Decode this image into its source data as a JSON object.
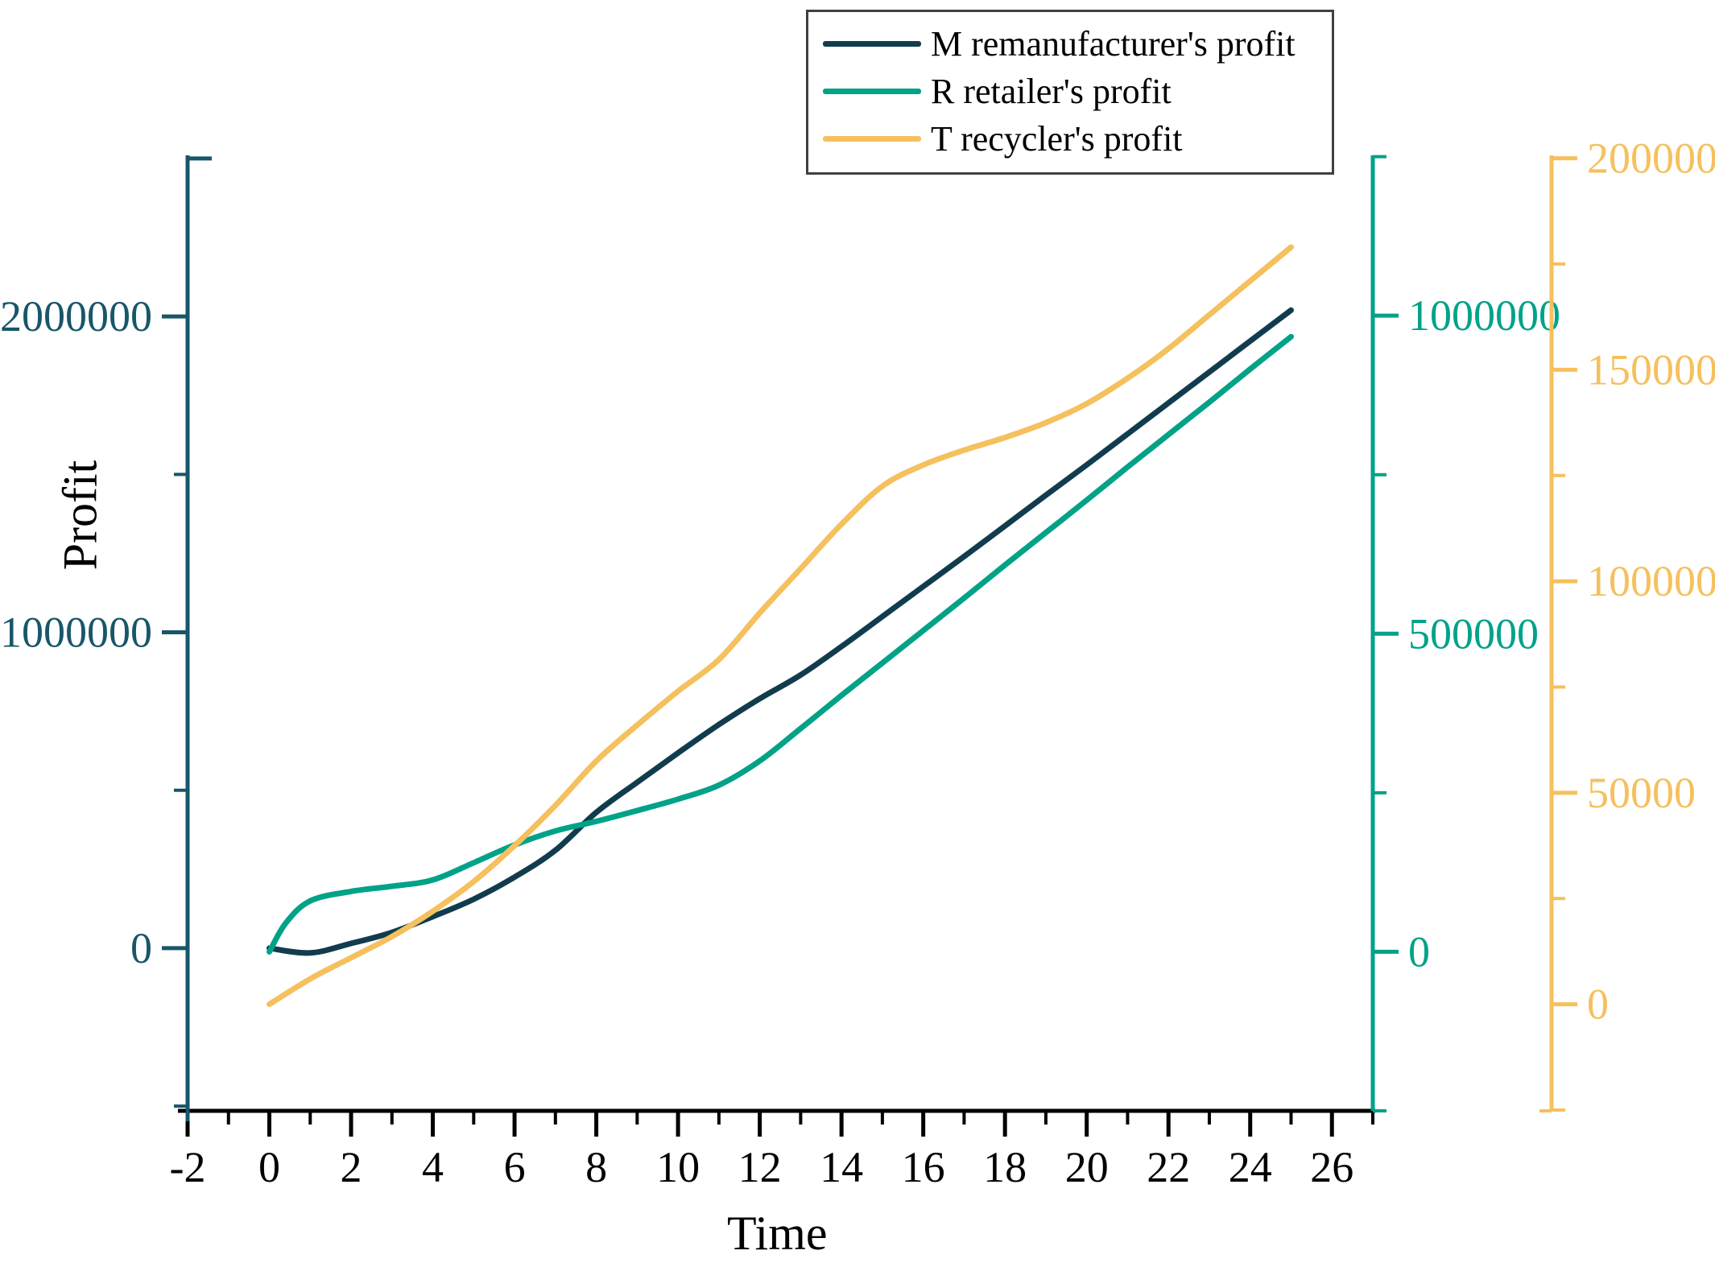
{
  "axis_titles": {
    "x": "Time",
    "y": "Profit"
  },
  "legend": {
    "entries": [
      {
        "label": "M remanufacturer's profit",
        "color": "#113c4d"
      },
      {
        "label": "R retailer's profit",
        "color": "#00a288"
      },
      {
        "label": "T recycler's profit",
        "color": "#f5c05e"
      }
    ]
  },
  "chart_data": {
    "type": "line",
    "title": "",
    "xlabel": "Time",
    "ylabel": "Profit",
    "grid": false,
    "legend_position": "top-right",
    "axes": {
      "x": {
        "min": -2,
        "max": 27,
        "ticks_major": [
          -2,
          0,
          2,
          4,
          6,
          8,
          10,
          12,
          14,
          16,
          18,
          20,
          22,
          24,
          26
        ],
        "ticks_minor": [
          -1,
          1,
          3,
          5,
          7,
          9,
          11,
          13,
          15,
          17,
          19,
          21,
          23,
          25,
          27
        ],
        "color": "#000000"
      },
      "left": {
        "label": "Profit",
        "min": -515000,
        "max": 2510000,
        "ticks_major": [
          0,
          1000000,
          2000000
        ],
        "ticks_minor": [
          -500000,
          500000,
          1500000,
          2500000
        ],
        "color": "#18566a"
      },
      "right_inner": {
        "min": -250000,
        "max": 1252000,
        "ticks_major": [
          0,
          500000,
          1000000
        ],
        "ticks_minor": [
          -250000,
          250000,
          750000,
          1250000
        ],
        "color": "#00a288"
      },
      "right_outer": {
        "min": -25200,
        "max": 200700,
        "ticks_major": [
          0,
          50000,
          100000,
          150000,
          200000
        ],
        "ticks_minor": [
          -25000,
          25000,
          75000,
          125000,
          175000
        ],
        "color": "#f5c05e"
      }
    },
    "series": [
      {
        "name": "M remanufacturer's profit",
        "axis": "left",
        "color": "#113c4d",
        "x": [
          0,
          1,
          2,
          3,
          4,
          5,
          6,
          7,
          8,
          9,
          10,
          11,
          12,
          13,
          14,
          15,
          16,
          17,
          18,
          19,
          20,
          21,
          22,
          23,
          24,
          25
        ],
        "values": [
          0,
          -15000,
          15000,
          50000,
          100000,
          155000,
          225000,
          310000,
          430000,
          525000,
          618000,
          708000,
          790000,
          865000,
          955000,
          1050000,
          1145000,
          1240000,
          1337000,
          1434000,
          1530000,
          1628000,
          1726000,
          1824000,
          1922000,
          2020000
        ]
      },
      {
        "name": "R retailer's profit",
        "axis": "right_inner",
        "color": "#00a288",
        "x": [
          0,
          0.4,
          1,
          2,
          3,
          4,
          5,
          6,
          7,
          8,
          9,
          10,
          11,
          12,
          13,
          14,
          15,
          16,
          17,
          18,
          19,
          20,
          21,
          22,
          23,
          24,
          25
        ],
        "values": [
          0,
          45000,
          80000,
          95000,
          103000,
          113000,
          140000,
          168000,
          190000,
          205000,
          222000,
          240000,
          262000,
          300000,
          351000,
          403000,
          454000,
          505000,
          556000,
          608000,
          659000,
          710000,
          762000,
          813000,
          864000,
          916000,
          967000
        ]
      },
      {
        "name": "T recycler's profit",
        "axis": "right_outer",
        "color": "#f5c05e",
        "x": [
          0,
          1,
          2,
          3,
          4,
          5,
          6,
          7,
          8,
          9,
          10,
          11,
          12,
          13,
          14,
          15,
          16,
          17,
          18,
          19,
          20,
          21,
          22,
          23,
          24,
          25
        ],
        "values": [
          0,
          6000,
          11000,
          16000,
          22000,
          29000,
          37500,
          47000,
          57500,
          66000,
          74000,
          81500,
          92500,
          103000,
          113500,
          122500,
          127500,
          131000,
          134000,
          137500,
          142000,
          148000,
          155000,
          163000,
          171000,
          179000
        ]
      }
    ]
  }
}
